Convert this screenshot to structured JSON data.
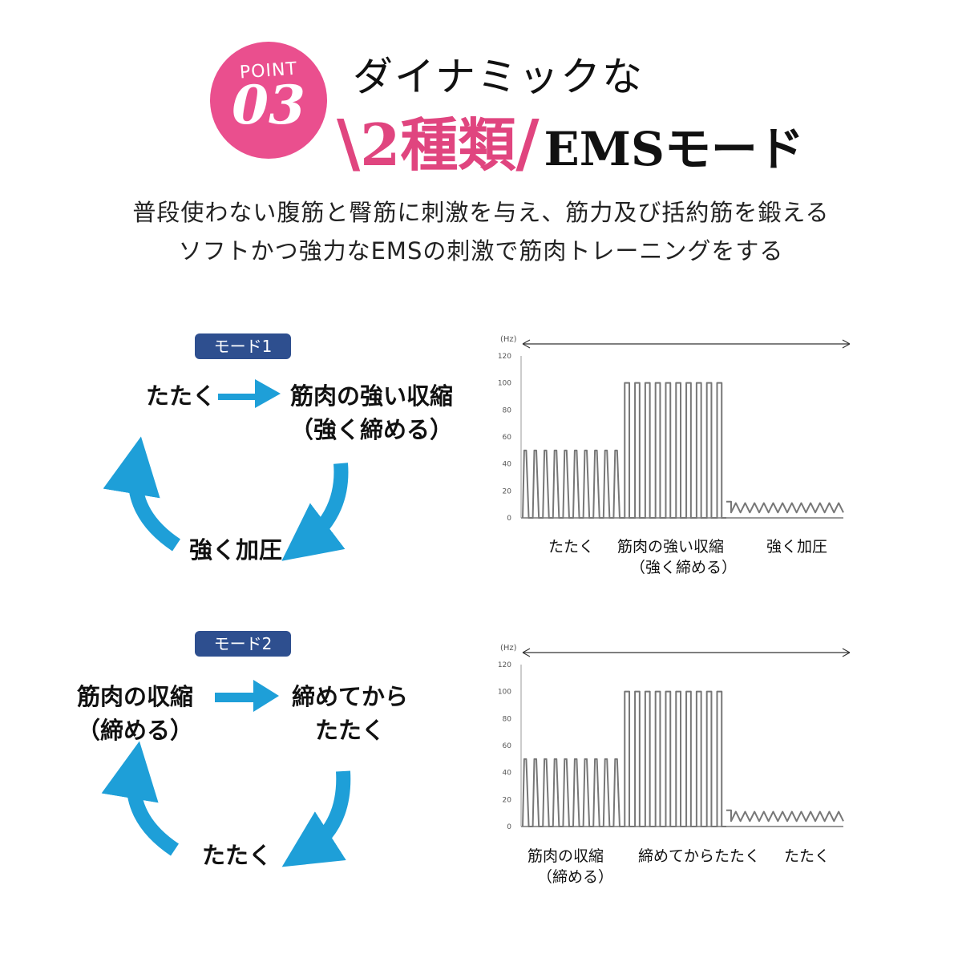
{
  "header": {
    "badge_word": "POINT",
    "badge_number": "03",
    "title_line1": "ダイナミックな",
    "slash_left": "\\",
    "accent_text": "2種類",
    "slash_right": "/",
    "title_tail": "EMSモード",
    "badge_color": "#ea4f8e"
  },
  "subtitle": {
    "line1": "普段使わない腹筋と臀筋に刺激を与え、筋力及び括約筋を鍛える",
    "line2": "ソフトかつ強力なEMSの刺激で筋肉トレーニングをする"
  },
  "mode1": {
    "label": "モード1",
    "step1": "たたく",
    "step2_line1": "筋肉の強い収縮",
    "step2_line2": "（強く締める）",
    "step3": "強く加圧",
    "chart_labels": [
      "たたく",
      "筋肉の強い収縮",
      "（強く締める）",
      "強く加圧"
    ]
  },
  "mode2": {
    "label": "モード2",
    "step1_line1": "筋肉の収縮",
    "step1_line2": "（締める）",
    "step2_line1": "締めてから",
    "step2_line2": "たたく",
    "step3": "たたく",
    "chart_labels": [
      "筋肉の収縮",
      "（締める）",
      "締めてからたたく",
      "たたく"
    ]
  },
  "colors": {
    "arrow": "#1e9fd8",
    "mode_label": "#2e4f8f",
    "accent": "#e0457f"
  },
  "chart_data": [
    {
      "type": "line",
      "unit": "(Hz)",
      "yticks": [
        0,
        20,
        40,
        60,
        80,
        100,
        120
      ],
      "ylim": [
        0,
        120
      ],
      "segments": [
        {
          "name": "たたく",
          "peak": 50,
          "pulses": 10
        },
        {
          "name": "筋肉の強い収縮",
          "peak": 100,
          "pulses": 10
        },
        {
          "name": "強く加圧",
          "peak": 5,
          "pulses": 12
        }
      ]
    },
    {
      "type": "line",
      "unit": "(Hz)",
      "yticks": [
        0,
        20,
        40,
        60,
        80,
        100,
        120
      ],
      "ylim": [
        0,
        120
      ],
      "segments": [
        {
          "name": "筋肉の収縮",
          "peak": 50,
          "pulses": 10
        },
        {
          "name": "締めてからたたく",
          "peak": 100,
          "pulses": 10
        },
        {
          "name": "たたく",
          "peak": 5,
          "pulses": 12
        }
      ]
    }
  ]
}
